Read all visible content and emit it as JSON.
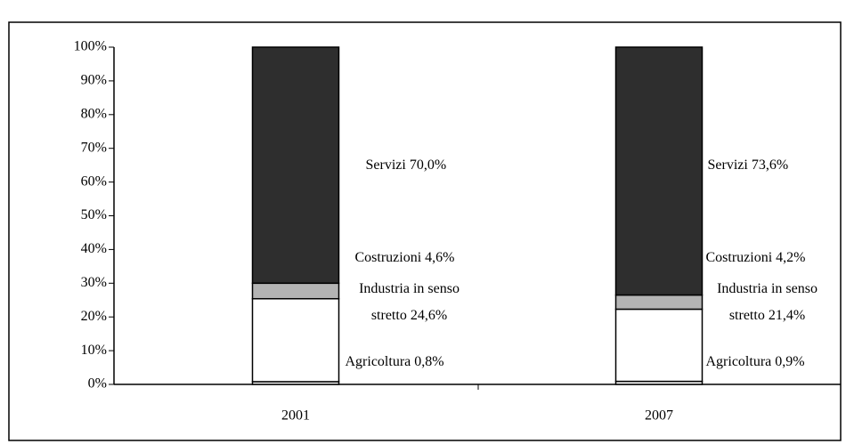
{
  "chart_data": {
    "type": "stacked-bar",
    "categories": [
      "2001",
      "2007"
    ],
    "series": [
      {
        "name": "Agricoltura",
        "color": "#ffffff",
        "values": [
          0.8,
          0.9
        ],
        "value_labels": [
          "Agricoltura 0,8%",
          "Agricoltura 0,9%"
        ]
      },
      {
        "name": "Industria in senso stretto",
        "color": "#ffffff",
        "values": [
          24.6,
          21.4
        ],
        "value_labels": [
          "Industria in senso stretto 24,6%",
          "Industria in senso stretto 21,4%"
        ]
      },
      {
        "name": "Costruzioni",
        "color": "#b4b4b4",
        "values": [
          4.6,
          4.2
        ],
        "value_labels": [
          "Costruzioni 4,6%",
          "Costruzioni 4,2%"
        ]
      },
      {
        "name": "Servizi",
        "color": "#2e2e2e",
        "values": [
          70.0,
          73.6
        ],
        "value_labels": [
          "Servizi 70,0%",
          "Servizi 73,6%"
        ]
      }
    ],
    "ylim": [
      0,
      100
    ],
    "yticks": [
      {
        "value": 0,
        "label": "0%"
      },
      {
        "value": 10,
        "label": "10%"
      },
      {
        "value": 20,
        "label": "20%"
      },
      {
        "value": 30,
        "label": "30%"
      },
      {
        "value": 40,
        "label": "40%"
      },
      {
        "value": 50,
        "label": "50%"
      },
      {
        "value": 60,
        "label": "60%"
      },
      {
        "value": 70,
        "label": "70%"
      },
      {
        "value": 80,
        "label": "80%"
      },
      {
        "value": 90,
        "label": "90%"
      },
      {
        "value": 100,
        "label": "100%"
      }
    ]
  }
}
